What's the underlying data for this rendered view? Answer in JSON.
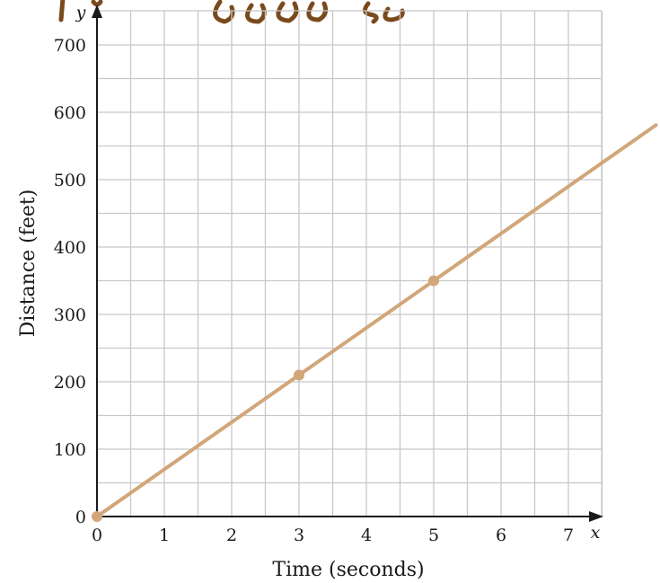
{
  "chart_data": {
    "type": "line",
    "xlabel": "Time (seconds)",
    "ylabel": "Distance (feet)",
    "x_axis_letter": "x",
    "y_axis_letter": "y",
    "xlim": [
      0,
      7.5
    ],
    "ylim": [
      0,
      700
    ],
    "x_ticks": [
      "0",
      "1",
      "2",
      "3",
      "4",
      "5",
      "6",
      "7"
    ],
    "y_ticks": [
      "0",
      "100",
      "200",
      "300",
      "400",
      "500",
      "600",
      "700"
    ],
    "x_minor_step": 0.5,
    "y_minor_step": 50,
    "grid": true,
    "line_color": "#d2a679",
    "series": [
      {
        "points": [
          {
            "x": 0,
            "y": 0
          },
          {
            "x": 3,
            "y": 210
          },
          {
            "x": 5,
            "y": 350
          }
        ],
        "line_extends_to_x": 8.3
      }
    ]
  },
  "handwriting_color": "#7a4a1c"
}
